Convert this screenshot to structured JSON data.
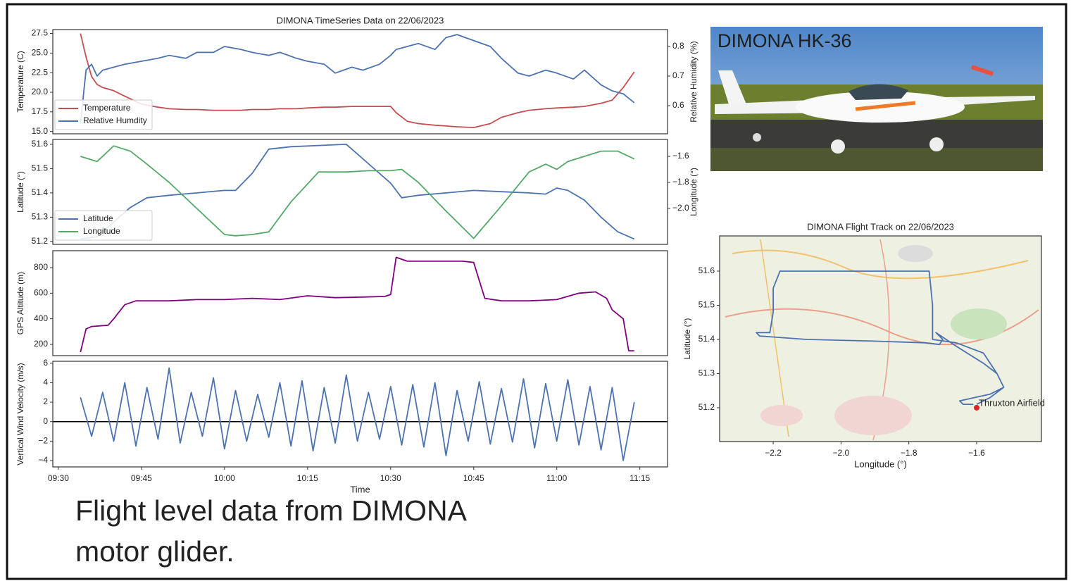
{
  "slide": {
    "photo_label": "DIMONA HK-36",
    "caption_lines": [
      "Flight level data from DIMONA",
      "motor glider."
    ]
  },
  "chart_data": [
    {
      "type": "line",
      "title": "DIMONA TimeSeries Data on 22/06/2023",
      "ylabel": "Temperature (C)",
      "y2label": "Relative Humidity (%)",
      "x": [
        "09:34",
        "09:35",
        "09:36",
        "09:37",
        "09:38",
        "09:40",
        "09:42",
        "09:45",
        "09:48",
        "09:50",
        "09:53",
        "09:55",
        "09:58",
        "10:00",
        "10:03",
        "10:05",
        "10:08",
        "10:10",
        "10:13",
        "10:15",
        "10:18",
        "10:20",
        "10:23",
        "10:25",
        "10:28",
        "10:30",
        "10:31",
        "10:33",
        "10:35",
        "10:38",
        "10:40",
        "10:42",
        "10:45",
        "10:48",
        "10:50",
        "10:53",
        "10:55",
        "10:58",
        "11:00",
        "11:03",
        "11:05",
        "11:08",
        "11:10",
        "11:12",
        "11:14"
      ],
      "series": [
        {
          "name": "Temperature",
          "color": "#c44e52",
          "values": [
            27.5,
            24.5,
            22,
            21,
            20.6,
            20.2,
            19.5,
            18.5,
            18.1,
            17.9,
            17.8,
            17.8,
            17.7,
            17.7,
            17.7,
            17.8,
            17.8,
            17.9,
            17.9,
            18.0,
            18.1,
            18.1,
            18.2,
            18.2,
            18.2,
            18.2,
            17.4,
            16.3,
            16.0,
            15.8,
            15.7,
            15.6,
            15.5,
            16.0,
            16.8,
            17.4,
            17.7,
            17.9,
            18.0,
            18.1,
            18.2,
            18.6,
            19.0,
            20.6,
            22.6
          ]
        },
        {
          "name": "Relative Humdity",
          "color": "#4c72b0",
          "axis": "y2",
          "values": [
            0.54,
            0.72,
            0.74,
            0.7,
            0.72,
            0.73,
            0.74,
            0.75,
            0.76,
            0.77,
            0.76,
            0.78,
            0.78,
            0.8,
            0.79,
            0.78,
            0.77,
            0.78,
            0.76,
            0.75,
            0.74,
            0.71,
            0.73,
            0.72,
            0.74,
            0.77,
            0.79,
            0.8,
            0.81,
            0.79,
            0.83,
            0.84,
            0.82,
            0.8,
            0.76,
            0.71,
            0.7,
            0.72,
            0.71,
            0.69,
            0.72,
            0.67,
            0.65,
            0.64,
            0.61
          ]
        }
      ],
      "xlim": [
        "09:29",
        "11:20"
      ],
      "ylim": [
        14.7,
        28.0
      ],
      "yticks": [
        {
          "value": 15,
          "label": "15.0"
        },
        17.5,
        {
          "value": 20,
          "label": "20.0"
        },
        22.5,
        {
          "value": 25,
          "label": "25.0"
        },
        27.5
      ],
      "y2lim": [
        0.505,
        0.857
      ],
      "y2ticks": [
        0.6,
        0.7,
        0.8
      ],
      "legend": "lower left",
      "grid": false
    },
    {
      "type": "line",
      "ylabel": "Latitude (°)",
      "y2label": "Longitude (°)",
      "x": [
        "09:34",
        "09:37",
        "09:40",
        "09:43",
        "09:46",
        "09:50",
        "09:55",
        "10:00",
        "10:02",
        "10:05",
        "10:08",
        "10:12",
        "10:17",
        "10:22",
        "10:26",
        "10:30",
        "10:32",
        "10:35",
        "10:40",
        "10:45",
        "10:50",
        "10:55",
        "10:58",
        "11:00",
        "11:02",
        "11:05",
        "11:08",
        "11:11",
        "11:14"
      ],
      "series": [
        {
          "name": "Latitude",
          "color": "#4c72b0",
          "values": [
            51.21,
            51.22,
            51.28,
            51.34,
            51.38,
            51.39,
            51.4,
            51.41,
            51.41,
            51.48,
            51.58,
            51.59,
            51.595,
            51.6,
            51.52,
            51.44,
            51.38,
            51.39,
            51.4,
            51.41,
            51.405,
            51.4,
            51.395,
            51.42,
            51.41,
            51.37,
            51.3,
            51.24,
            51.21
          ]
        },
        {
          "name": "Longitude",
          "color": "#55a868",
          "axis": "y2",
          "values": [
            -1.6,
            -1.64,
            -1.52,
            -1.56,
            -1.66,
            -1.8,
            -2.0,
            -2.2,
            -2.21,
            -2.2,
            -2.18,
            -1.95,
            -1.72,
            -1.72,
            -1.71,
            -1.71,
            -1.7,
            -1.8,
            -2.02,
            -2.23,
            -1.98,
            -1.72,
            -1.66,
            -1.7,
            -1.64,
            -1.6,
            -1.56,
            -1.56,
            -1.62
          ]
        }
      ],
      "xlim": [
        "09:29",
        "11:20"
      ],
      "ylim": [
        51.188,
        51.62
      ],
      "yticks": [
        51.2,
        51.3,
        51.4,
        51.5,
        51.6
      ],
      "y2lim": [
        -2.276,
        -1.47
      ],
      "y2ticks": [
        {
          "value": -2.0,
          "label": "−2.0"
        },
        {
          "value": -1.8,
          "label": "−1.8"
        },
        {
          "value": -1.6,
          "label": "−1.6"
        }
      ],
      "legend": "lower left",
      "grid": false
    },
    {
      "type": "line",
      "ylabel": "GPS Altitude (m)",
      "color": "#800080",
      "x": [
        "09:34",
        "09:35",
        "09:36",
        "09:39",
        "09:40",
        "09:42",
        "09:44",
        "09:50",
        "09:55",
        "10:00",
        "10:05",
        "10:10",
        "10:15",
        "10:20",
        "10:25",
        "10:29",
        "10:30",
        "10:31",
        "10:33",
        "10:38",
        "10:43",
        "10:45",
        "10:46",
        "10:47",
        "10:50",
        "10:55",
        "11:00",
        "11:04",
        "11:07",
        "11:09",
        "11:10",
        "11:12",
        "11:13",
        "11:14"
      ],
      "values": [
        140,
        320,
        340,
        350,
        400,
        510,
        540,
        540,
        550,
        550,
        560,
        550,
        580,
        565,
        570,
        575,
        590,
        880,
        850,
        850,
        850,
        840,
        700,
        560,
        540,
        540,
        550,
        600,
        610,
        560,
        470,
        400,
        150,
        150
      ],
      "xlim": [
        "09:29",
        "11:20"
      ],
      "ylim": [
        112,
        932
      ],
      "yticks": [
        200,
        400,
        600,
        800
      ],
      "grid": false
    },
    {
      "type": "line",
      "ylabel": "Vertical Wind Velocity (m/s)",
      "xlabel": "Time",
      "color": "#4c72b0",
      "x": [
        "09:34",
        "09:36",
        "09:38",
        "09:40",
        "09:42",
        "09:44",
        "09:46",
        "09:48",
        "09:50",
        "09:52",
        "09:54",
        "09:56",
        "09:58",
        "10:00",
        "10:02",
        "10:04",
        "10:06",
        "10:08",
        "10:10",
        "10:12",
        "10:14",
        "10:16",
        "10:18",
        "10:20",
        "10:22",
        "10:24",
        "10:26",
        "10:28",
        "10:30",
        "10:32",
        "10:34",
        "10:36",
        "10:38",
        "10:40",
        "10:42",
        "10:44",
        "10:46",
        "10:48",
        "10:50",
        "10:52",
        "10:54",
        "10:56",
        "10:58",
        "11:00",
        "11:02",
        "11:04",
        "11:06",
        "11:08",
        "11:10",
        "11:12",
        "11:14"
      ],
      "values": [
        2.5,
        -1.5,
        3,
        -2,
        4,
        -2.5,
        3.5,
        -1.8,
        5.5,
        -2.2,
        3,
        -1.5,
        4.5,
        -2.8,
        3.2,
        -2,
        2.8,
        -1.6,
        4,
        -2.5,
        4.2,
        -3,
        3.5,
        -2.2,
        4.8,
        -2,
        3,
        -1.8,
        3.6,
        -2.4,
        3.8,
        -2.6,
        4,
        -3.5,
        3.2,
        -2,
        4.1,
        -2.3,
        3.4,
        -2.1,
        4.4,
        -2.7,
        3.9,
        -2,
        4.3,
        -2.4,
        3.6,
        -2.9,
        3.5,
        -4,
        2
      ],
      "hline": 0,
      "xlim": [
        "09:29",
        "11:20"
      ],
      "xticks": [
        "09:30",
        "09:45",
        "10:00",
        "10:15",
        "10:30",
        "10:45",
        "11:00",
        "11:15"
      ],
      "ylim": [
        -4.65,
        6.2
      ],
      "yticks": [
        {
          "value": -4,
          "label": "−4"
        },
        {
          "value": -2,
          "label": "−2"
        },
        0,
        2,
        4,
        6
      ],
      "grid": false
    },
    {
      "type": "line",
      "title": "DIMONA Flight Track on 22/06/2023",
      "xlabel": "Longitude (°)",
      "ylabel": "Latitude (°)",
      "color": "#4c72b0",
      "x": [
        -1.6,
        -1.56,
        -1.52,
        -1.54,
        -1.58,
        -1.66,
        -1.73,
        -1.73,
        -1.73,
        -1.74,
        -1.9,
        -2.05,
        -2.18,
        -2.2,
        -2.2,
        -2.21,
        -2.25,
        -2.24,
        -2.1,
        -1.9,
        -1.75,
        -1.71,
        -1.7,
        -1.72,
        -1.66,
        -1.58,
        -1.54,
        -1.52,
        -1.56,
        -1.65,
        -1.64,
        -1.61
      ],
      "values": [
        51.21,
        51.23,
        51.26,
        51.3,
        51.36,
        51.39,
        51.4,
        51.43,
        51.5,
        51.6,
        51.6,
        51.6,
        51.6,
        51.55,
        51.48,
        51.42,
        51.42,
        51.41,
        51.4,
        51.395,
        51.39,
        51.385,
        51.4,
        51.42,
        51.38,
        51.33,
        51.3,
        51.26,
        51.24,
        51.22,
        51.21,
        51.21
      ],
      "annotation": {
        "text": "Thruxton Airfield",
        "x": -1.6,
        "y": 51.2,
        "color": "#d62728"
      },
      "xlim": [
        -2.358,
        -1.409
      ],
      "xticks": [
        {
          "value": -2.2,
          "label": "−2.2"
        },
        {
          "value": -2.0,
          "label": "−2.0"
        },
        {
          "value": -1.8,
          "label": "−1.8"
        },
        {
          "value": -1.6,
          "label": "−1.6"
        }
      ],
      "ylim": [
        51.101,
        51.703
      ],
      "yticks": [
        51.2,
        51.3,
        51.4,
        51.5,
        51.6
      ],
      "grid": false
    }
  ]
}
